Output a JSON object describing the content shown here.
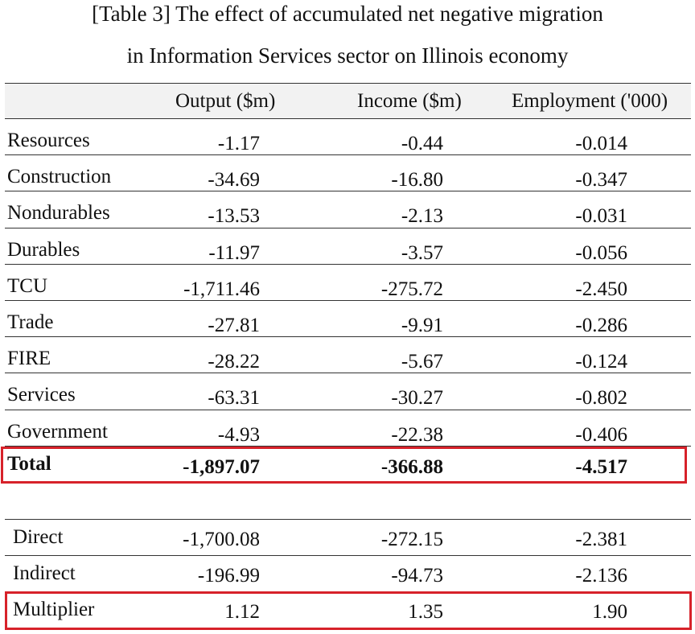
{
  "title_line1": "[Table 3] The effect of accumulated net negative migration",
  "title_line2": "in Information Services sector on Illinois economy",
  "headers": [
    "",
    "Output ($m)",
    "Income ($m)",
    "Employment ('000)"
  ],
  "rows": [
    {
      "label": "Resources",
      "output": "-1.17",
      "income": "-0.44",
      "employment": "-0.014"
    },
    {
      "label": "Construction",
      "output": "-34.69",
      "income": "-16.80",
      "employment": "-0.347"
    },
    {
      "label": "Nondurables",
      "output": "-13.53",
      "income": "-2.13",
      "employment": "-0.031"
    },
    {
      "label": "Durables",
      "output": "-11.97",
      "income": "-3.57",
      "employment": "-0.056"
    },
    {
      "label": "TCU",
      "output": "-1,711.46",
      "income": "-275.72",
      "employment": "-2.450"
    },
    {
      "label": "Trade",
      "output": "-27.81",
      "income": "-9.91",
      "employment": "-0.286"
    },
    {
      "label": "FIRE",
      "output": "-28.22",
      "income": "-5.67",
      "employment": "-0.124"
    },
    {
      "label": "Services",
      "output": "-63.31",
      "income": "-30.27",
      "employment": "-0.802"
    },
    {
      "label": "Government",
      "output": "-4.93",
      "income": "-22.38",
      "employment": "-0.406"
    }
  ],
  "total": {
    "label": "Total",
    "output": "-1,897.07",
    "income": "-366.88",
    "employment": "-4.517"
  },
  "effects": [
    {
      "label": "Direct",
      "output": "-1,700.08",
      "income": "-272.15",
      "employment": "-2.381"
    },
    {
      "label": "Indirect",
      "output": "-196.99",
      "income": "-94.73",
      "employment": "-2.136"
    },
    {
      "label": "Multiplier",
      "output": "1.12",
      "income": "1.35",
      "employment": "1.90"
    }
  ],
  "highlight_color": "#d7222a"
}
